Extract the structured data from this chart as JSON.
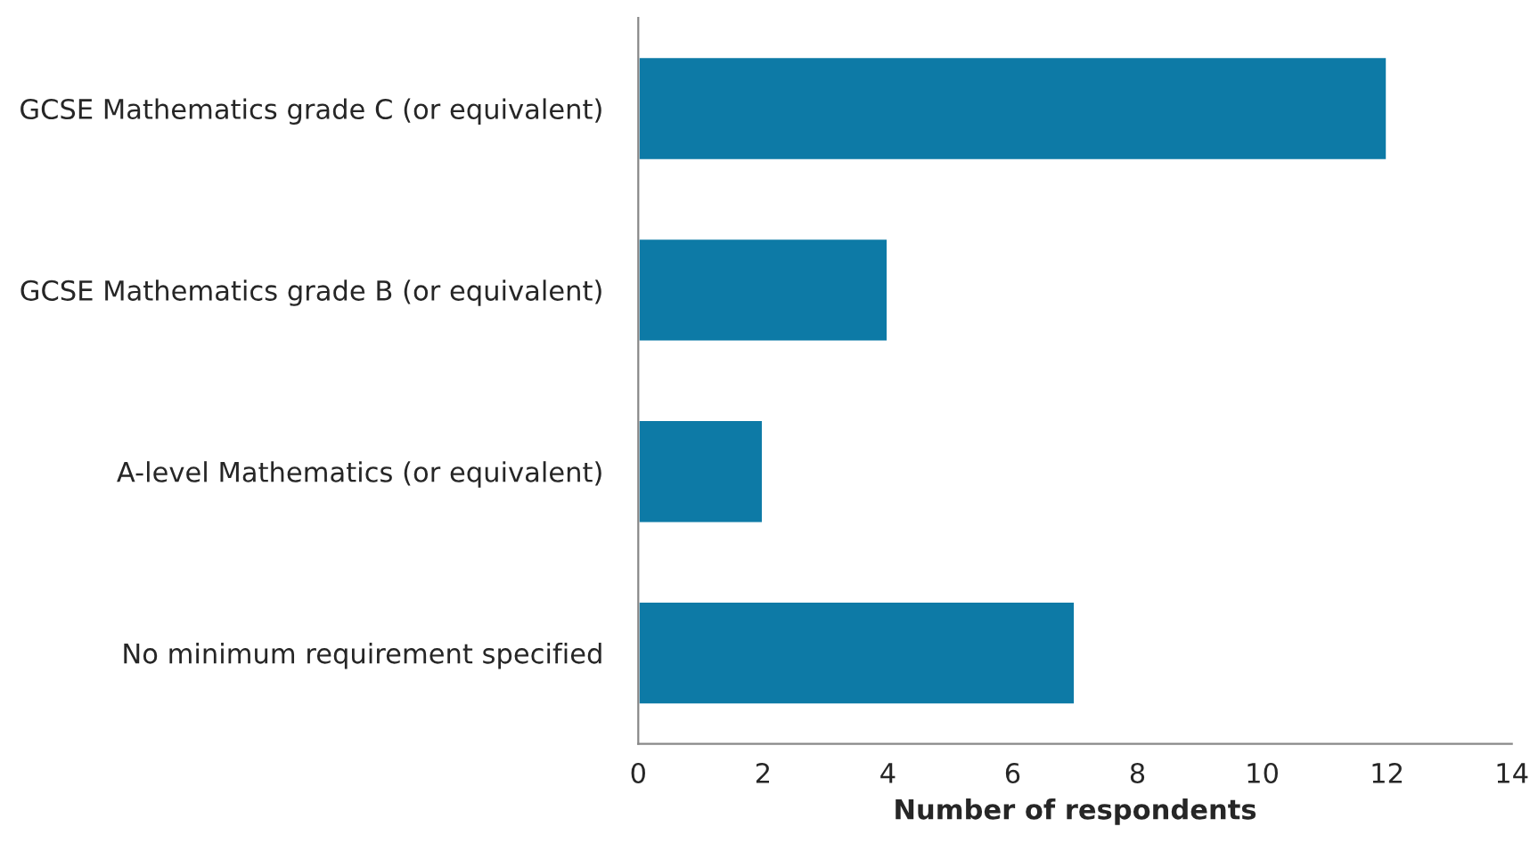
{
  "chart_data": {
    "type": "bar",
    "orientation": "horizontal",
    "xlabel": "Number of respondents",
    "categories": [
      "GCSE Mathematics grade C (or equivalent)",
      "GCSE Mathematics grade B (or equivalent)",
      "A-level Mathematics (or equivalent)",
      "No minimum requirement specified"
    ],
    "values": [
      12,
      4,
      2,
      7
    ],
    "color": "#0d7aa6",
    "xlim": [
      0,
      14
    ],
    "xticks": [
      0,
      2,
      4,
      6,
      8,
      10,
      12,
      14
    ],
    "grid": false,
    "legend": false
  }
}
